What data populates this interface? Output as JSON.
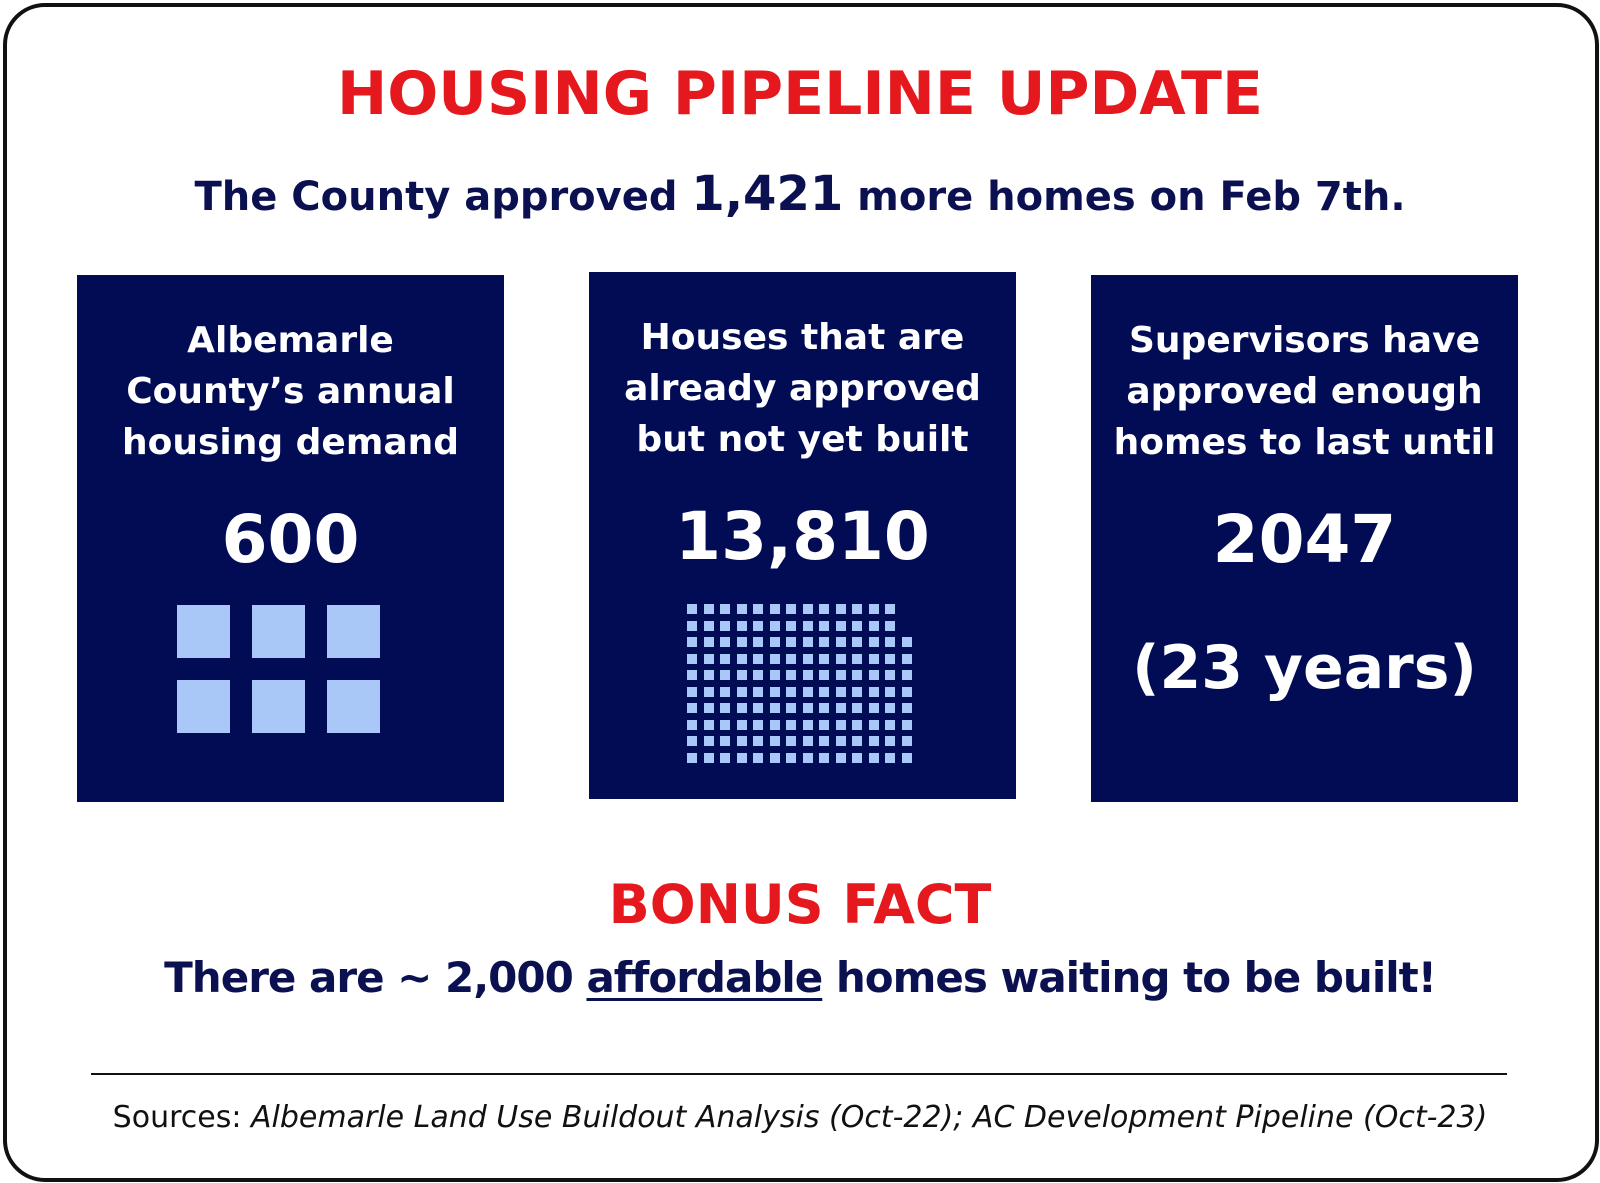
{
  "headline": "HOUSING PIPELINE UPDATE",
  "subhead": {
    "before": "The County approved ",
    "number": "1,421",
    "after": " more homes on Feb 7th."
  },
  "cards": [
    {
      "label": "Albemarle\nCounty’s annual\nhousing demand",
      "stat": "600",
      "icon_units": 6
    },
    {
      "label": "Houses that are\nalready approved\nbut not yet built",
      "stat": "13,810",
      "icon_units": 138
    },
    {
      "label": "Supervisors have\napproved enough\nhomes to last until",
      "stat": "2047",
      "stat_secondary": "(23 years)"
    }
  ],
  "bonus": {
    "title": "BONUS FACT",
    "before": "There are ~ 2,000 ",
    "emphasis": "affordable",
    "after": " homes waiting to be built!"
  },
  "sources": {
    "prefix": "Sources:  ",
    "text": "Albemarle Land Use Buildout Analysis (Oct-22); AC Development Pipeline (Oct-23)"
  },
  "colors": {
    "accent_red": "#e5191d",
    "navy_text": "#0b1150",
    "card_bg": "#020c55",
    "icon_fill": "#aac8f7"
  }
}
